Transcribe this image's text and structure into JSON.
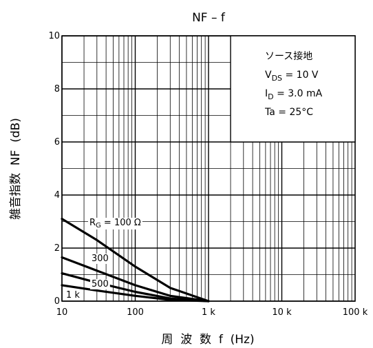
{
  "chart_data": {
    "type": "line",
    "title": "NF – f",
    "xlabel": "周  波  数  f  (Hz)",
    "ylabel": "雑音指数  NF  (dB)",
    "x_scale": "log",
    "xlim": [
      10,
      100000
    ],
    "ylim": [
      0,
      10
    ],
    "grid": true,
    "x_tick_values": [
      10,
      100,
      1000,
      10000,
      100000
    ],
    "x_tick_labels": [
      "10",
      "100",
      "1 k",
      "10 k",
      "100 k"
    ],
    "y_tick_values": [
      0,
      2,
      4,
      6,
      8,
      10
    ],
    "y_tick_labels": [
      "0",
      "2",
      "4",
      "6",
      "8",
      "10"
    ],
    "series": [
      {
        "name": "RG = 100 Ω",
        "label_main": "R",
        "label_sub": "G",
        "label_rest": " = 100 Ω",
        "x": [
          10,
          30,
          100,
          300,
          1000
        ],
        "y": [
          3.1,
          2.3,
          1.3,
          0.5,
          0
        ]
      },
      {
        "name": "300",
        "x": [
          10,
          30,
          100,
          300,
          1000
        ],
        "y": [
          1.65,
          1.15,
          0.6,
          0.2,
          0
        ]
      },
      {
        "name": "500",
        "x": [
          10,
          30,
          100,
          300,
          1000
        ],
        "y": [
          1.05,
          0.7,
          0.35,
          0.1,
          0
        ]
      },
      {
        "name": "1 k",
        "x": [
          10,
          30,
          100,
          300,
          1000
        ],
        "y": [
          0.6,
          0.4,
          0.2,
          0.05,
          0
        ]
      }
    ],
    "conditions": {
      "title": "ソース接地",
      "lines": [
        {
          "main": "V",
          "sub": "DS",
          "rest": " = 10 V"
        },
        {
          "main": "I",
          "sub": "D",
          "rest": " = 3.0 mA"
        },
        {
          "main": "Ta = 25°C",
          "sub": "",
          "rest": ""
        }
      ]
    }
  }
}
